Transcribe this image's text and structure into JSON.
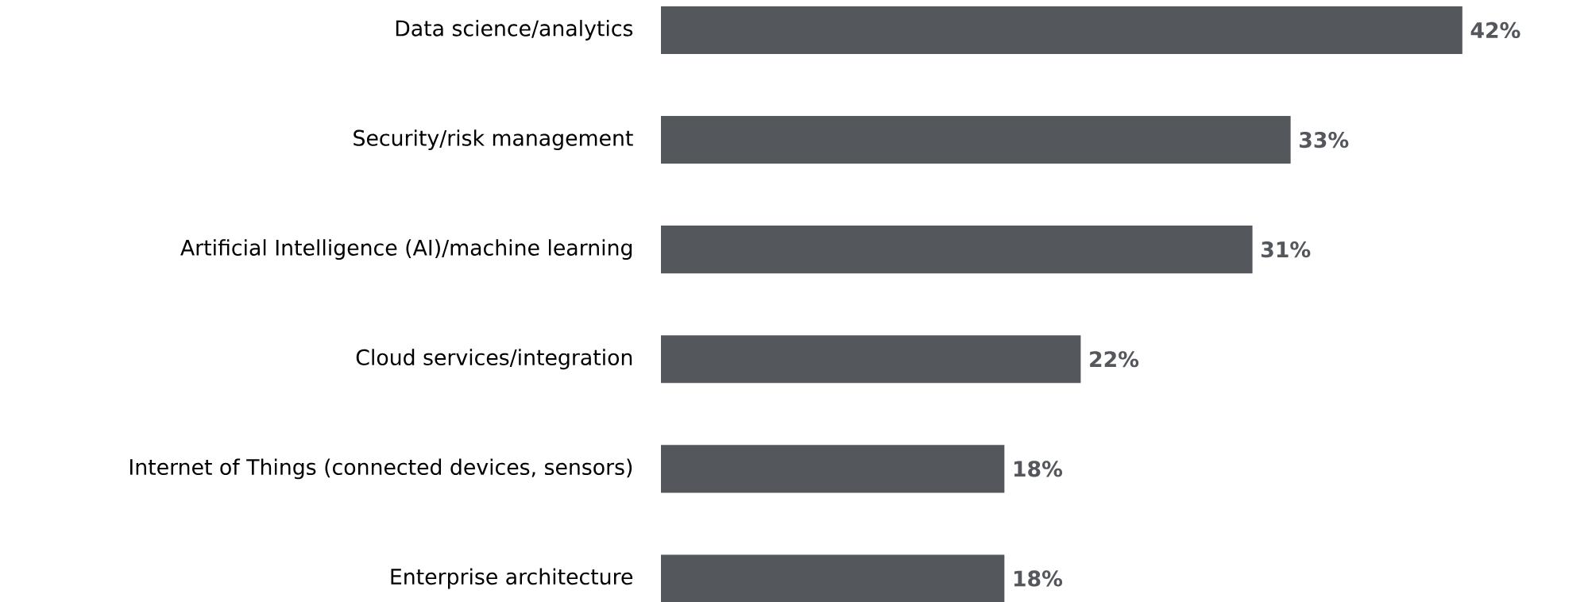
{
  "chart_data": {
    "type": "bar",
    "orientation": "horizontal",
    "categories": [
      "Data science/analytics",
      "Security/risk management",
      "Artificial Intelligence (AI)/machine learning",
      "Cloud services/integration",
      "Internet of Things  (connected devices, sensors)",
      "Enterprise architecture"
    ],
    "values": [
      42,
      33,
      31,
      22,
      18,
      18
    ],
    "value_labels": [
      "42%",
      "33%",
      "31%",
      "22%",
      "18%",
      "18%"
    ],
    "color": "#54575c"
  }
}
